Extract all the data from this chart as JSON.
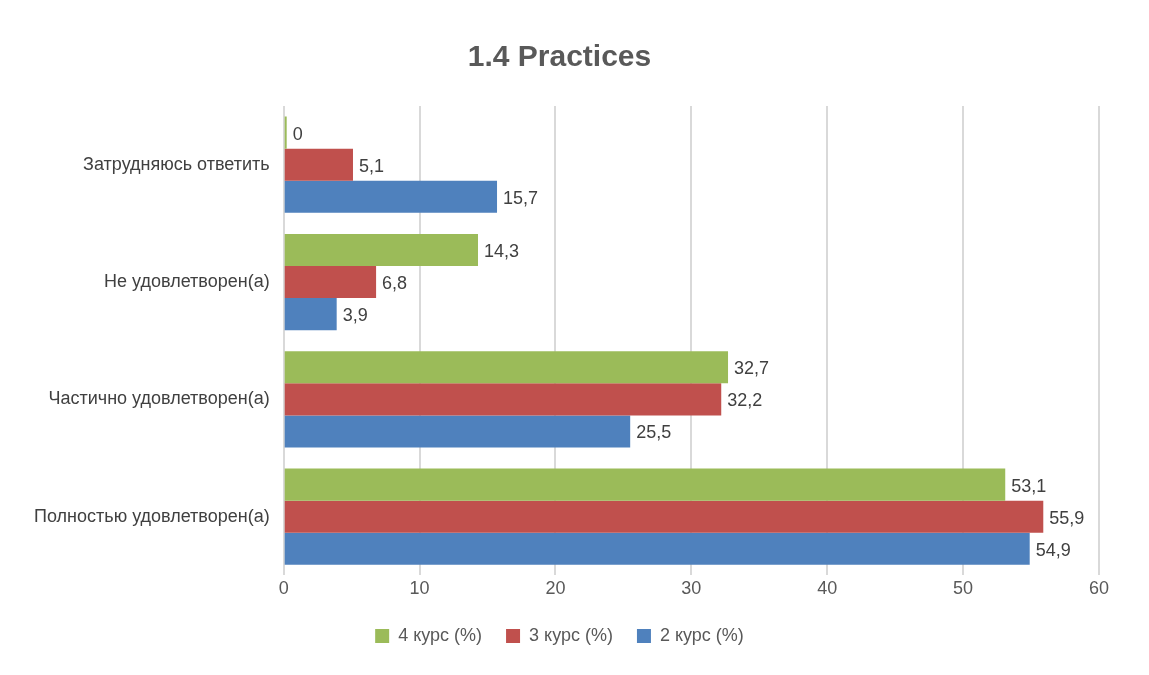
{
  "chart_data": {
    "type": "bar",
    "orientation": "horizontal",
    "title": "1.4 Practices",
    "categories": [
      "Затрудняюсь ответить",
      "Не удовлетворен(а)",
      "Частично удовлетворен(а)",
      "Полностью удовлетворен(а)"
    ],
    "series": [
      {
        "name": "4 курс (%)",
        "color": "#9bbb59",
        "values": [
          0,
          14.3,
          32.7,
          53.1
        ],
        "value_labels": [
          "0",
          "14,3",
          "32,7",
          "53,1"
        ]
      },
      {
        "name": "3 курс (%)",
        "color": "#c0504d",
        "values": [
          5.1,
          6.8,
          32.2,
          55.9
        ],
        "value_labels": [
          "5,1",
          "6,8",
          "32,2",
          "55,9"
        ]
      },
      {
        "name": "2 курс (%)",
        "color": "#4f81bd",
        "values": [
          15.7,
          3.9,
          25.5,
          54.9
        ],
        "value_labels": [
          "15,7",
          "3,9",
          "25,5",
          "54,9"
        ]
      }
    ],
    "xlim": [
      0,
      60
    ],
    "xticks": [
      0,
      10,
      20,
      30,
      40,
      50,
      60
    ],
    "grid": "x",
    "legend": "bottom"
  }
}
